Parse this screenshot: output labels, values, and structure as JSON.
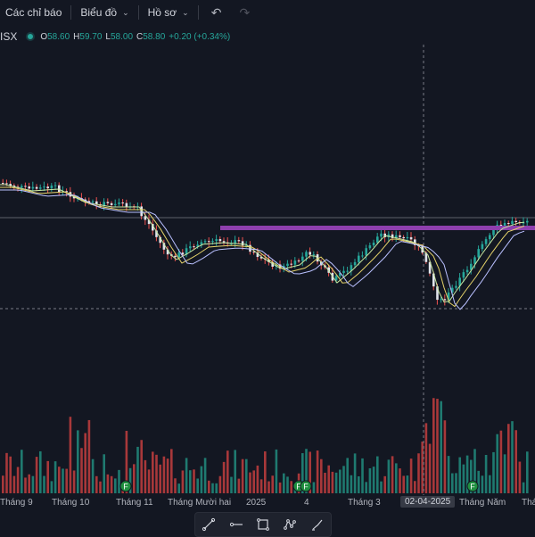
{
  "toolbar_top": {
    "indicators_label": "Các chỉ báo",
    "chart_label": "Biểu đồ",
    "profile_label": "Hồ sơ"
  },
  "legend": {
    "symbol": "ISX",
    "open_key": "O",
    "open": "58.60",
    "high_key": "H",
    "high": "59.70",
    "low_key": "L",
    "low": "58.00",
    "close_key": "C",
    "close": "58.80",
    "change": "+0.20 (+0.34%)"
  },
  "time_axis": {
    "labels": [
      "Tháng 9",
      "Tháng 10",
      "Tháng 11",
      "Tháng Mười hai",
      "2025",
      "4",
      "Tháng 3",
      "02-04-2025",
      "Tháng Năm",
      "Thá"
    ],
    "highlighted": "02-04-2025"
  },
  "colors": {
    "background": "#131722",
    "up": "#26a69a",
    "down": "#ef5350",
    "resistance_line": "#8e3fae",
    "ma_short": "#c8e6a0",
    "ma_mid": "#e6d36a",
    "ma_long": "#b9c0ff",
    "earnings_badge": "#1f8f3f"
  },
  "markers": [
    {
      "label": "F"
    },
    {
      "label": "F"
    },
    {
      "label": "F"
    },
    {
      "label": "F"
    }
  ],
  "drawing_tools": [
    "trend-line-icon",
    "horizontal-ray-icon",
    "rectangle-icon",
    "path-icon",
    "brush-icon"
  ]
}
